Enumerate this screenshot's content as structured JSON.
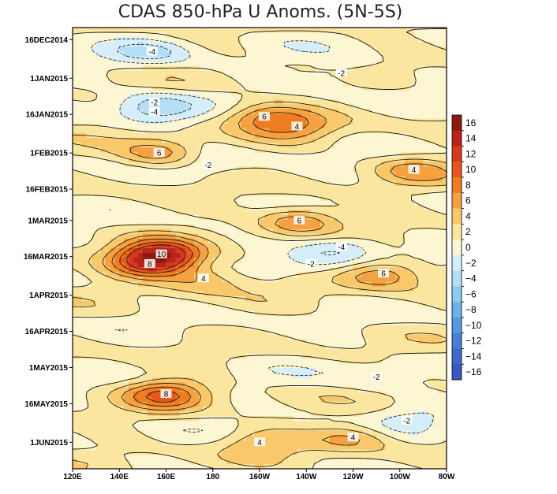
{
  "chart_data": {
    "type": "heatmap",
    "title": "CDAS 850-hPa U Anoms. (5N-5S)",
    "xlabel": "",
    "ylabel": "",
    "x_ticks": [
      "120E",
      "140E",
      "160E",
      "180",
      "160W",
      "140W",
      "120W",
      "100W",
      "80W"
    ],
    "x_range_deg_east": [
      120,
      280
    ],
    "y_ticks": [
      "16DEC2014",
      "1JAN2015",
      "16JAN2015",
      "1FEB2015",
      "16FEB2015",
      "1MAR2015",
      "16MAR2015",
      "1APR2015",
      "16APR2015",
      "1MAY2015",
      "16MAY2015",
      "1JUN2015"
    ],
    "y_range": [
      "11DEC2014",
      "12JUN2015"
    ],
    "colorbar": {
      "levels": [
        -16,
        -14,
        -12,
        -10,
        -8,
        -6,
        -4,
        -2,
        0,
        2,
        4,
        6,
        8,
        10,
        12,
        14,
        16
      ],
      "labels": [
        "16",
        "14",
        "12",
        "10",
        "8",
        "6",
        "4",
        "2",
        "0",
        "−2",
        "−4",
        "−6",
        "−8",
        "−10",
        "−12",
        "−14",
        "−16"
      ],
      "colors": [
        "#8c1a10",
        "#b8231a",
        "#d7391f",
        "#e8561f",
        "#f07d22",
        "#f5a141",
        "#f9c86a",
        "#fbe69f",
        "#fdf6d2",
        "#d6eefa",
        "#b4def5",
        "#8ecbee",
        "#6cb2e6",
        "#5598dd",
        "#4a80d4",
        "#3f68cb",
        "#3a56c2"
      ]
    },
    "features": [
      {
        "lon": 158,
        "day": 94,
        "value": 10,
        "label": "10"
      },
      {
        "lon": 153,
        "day": 98,
        "value": 8,
        "label": "8"
      },
      {
        "lon": 160,
        "day": 152,
        "value": 8,
        "label": "8"
      },
      {
        "lon": 157,
        "day": 52,
        "value": 6,
        "label": "6"
      },
      {
        "lon": 202,
        "day": 37,
        "value": 6,
        "label": "6"
      },
      {
        "lon": 217,
        "day": 80,
        "value": 6,
        "label": "6"
      },
      {
        "lon": 253,
        "day": 102,
        "value": 6,
        "label": "6"
      },
      {
        "lon": 216,
        "day": 41,
        "value": 4,
        "label": "4"
      },
      {
        "lon": 266,
        "day": 59,
        "value": 4,
        "label": "4"
      },
      {
        "lon": 240,
        "day": 170,
        "value": 4,
        "label": "4"
      },
      {
        "lon": 200,
        "day": 172,
        "value": 4,
        "label": "4"
      },
      {
        "lon": 176,
        "day": 104,
        "value": 4,
        "label": "4"
      },
      {
        "lon": 155,
        "day": 31,
        "value": -2,
        "label": "-2"
      },
      {
        "lon": 154,
        "day": 10,
        "value": -4,
        "label": "-4"
      },
      {
        "lon": 155,
        "day": 35,
        "value": -4,
        "label": "-4"
      },
      {
        "lon": 235,
        "day": 91,
        "value": -4,
        "label": "-4"
      },
      {
        "lon": 222,
        "day": 98,
        "value": -2,
        "label": "-2"
      },
      {
        "lon": 235,
        "day": 19,
        "value": -2,
        "label": "-2"
      },
      {
        "lon": 250,
        "day": 145,
        "value": -2,
        "label": "-2"
      },
      {
        "lon": 263,
        "day": 163,
        "value": -2,
        "label": "-2"
      },
      {
        "lon": 178,
        "day": 57,
        "value": -2,
        "label": "-2"
      }
    ]
  }
}
